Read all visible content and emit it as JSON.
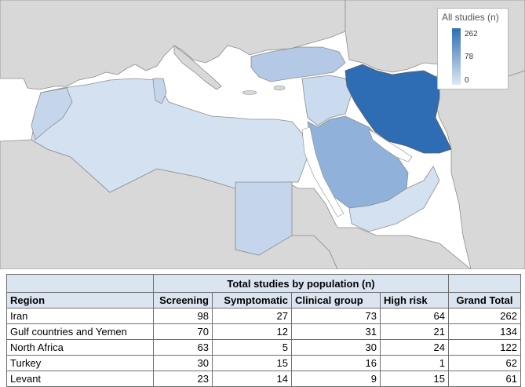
{
  "legend": {
    "title": "All studies (n)",
    "ticks": [
      "262",
      "78",
      "0"
    ],
    "color_high": "#2e6db3",
    "color_low": "#dfe8f5"
  },
  "map_regions": [
    {
      "name": "Iran",
      "value": 262
    },
    {
      "name": "Gulf countries and Yemen",
      "value": 134
    },
    {
      "name": "North Africa",
      "value": 122
    },
    {
      "name": "Turkey",
      "value": 62
    },
    {
      "name": "Levant",
      "value": 61
    }
  ],
  "table": {
    "group_header": "Total studies by population (n)",
    "columns": [
      "Region",
      "Screening",
      "Symptomatic",
      "Clinical group",
      "High risk",
      "Grand Total"
    ],
    "rows": [
      [
        "Iran",
        "98",
        "27",
        "73",
        "64",
        "262"
      ],
      [
        "Gulf countries and Yemen",
        "70",
        "12",
        "31",
        "21",
        "134"
      ],
      [
        "North Africa",
        "63",
        "5",
        "30",
        "24",
        "122"
      ],
      [
        "Turkey",
        "30",
        "15",
        "16",
        "1",
        "62"
      ],
      [
        "Levant",
        "23",
        "14",
        "9",
        "15",
        "61"
      ]
    ]
  }
}
